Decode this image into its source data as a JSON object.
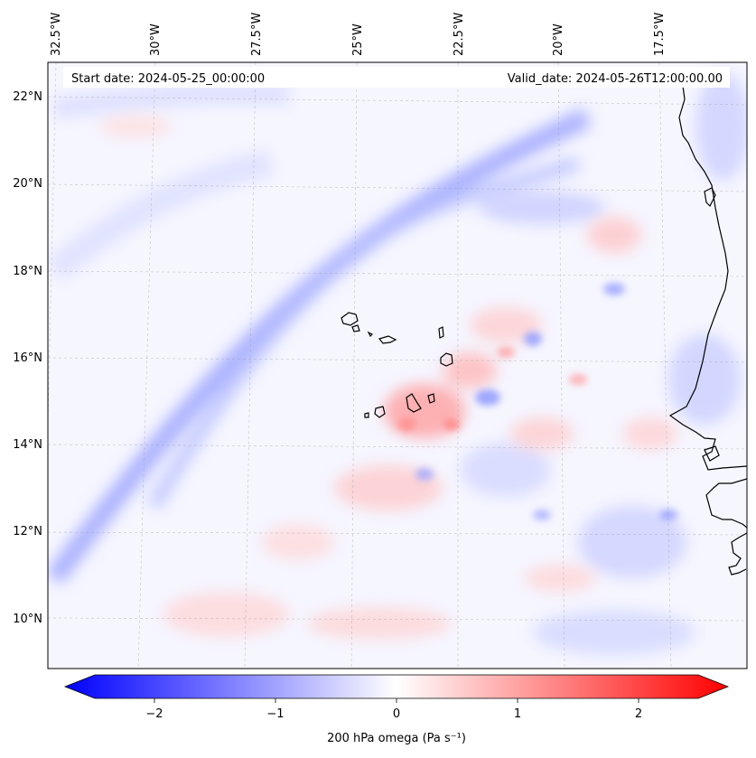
{
  "header": {
    "start_date": "Start date: 2024-05-25_00:00:00",
    "valid_date": "Valid_date: 2024-05-26T12:00:00.00"
  },
  "map": {
    "longitude_labels": [
      "32.5°W",
      "30°W",
      "27.5°W",
      "25°W",
      "22.5°W",
      "20°W",
      "17.5°W"
    ],
    "latitude_labels": [
      "22°N",
      "20°N",
      "18°N",
      "16°N",
      "14°N",
      "12°N",
      "10°N"
    ],
    "gridlines": true,
    "coastline_color": "#000000"
  },
  "colorbar": {
    "label": "200 hPa omega (Pa s⁻¹)",
    "ticks": [
      "−2",
      "−1",
      "0",
      "1",
      "2"
    ],
    "tick_values": [
      -2,
      -1,
      0,
      1,
      2
    ],
    "range": [
      -2.6,
      2.6
    ],
    "cmap": "bwr",
    "extend": "both",
    "colors": {
      "negative": "#0000ff",
      "zero": "#ffffff",
      "positive": "#ff0000"
    }
  }
}
